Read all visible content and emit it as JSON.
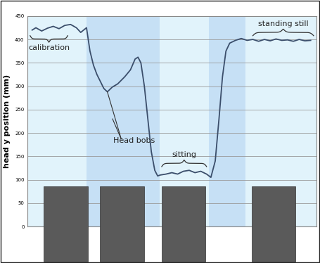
{
  "chart_data": {
    "type": "line",
    "y_label": "head y position (mm)",
    "x": [
      1.7,
      3,
      5,
      7,
      9,
      11,
      13,
      15,
      17,
      18.5,
      19.5,
      20.5,
      21.7,
      22.9,
      24.1,
      25.3,
      26.5,
      27.7,
      28.4,
      29.4,
      31.3,
      33.7,
      35.7,
      37.3,
      38.3,
      39.3,
      40.5,
      41.7,
      42.9,
      44.1,
      45.1,
      46,
      48,
      50,
      52,
      54,
      56,
      58,
      60,
      62,
      63.5,
      65,
      66.3,
      67.5,
      68.7,
      70,
      72,
      74,
      76,
      78,
      80,
      82,
      84,
      86,
      88,
      90,
      92,
      94,
      96,
      98
    ],
    "values": [
      420,
      425,
      418,
      424,
      428,
      423,
      430,
      432,
      425,
      415,
      420,
      425,
      375,
      345,
      325,
      310,
      295,
      288,
      292,
      298,
      305,
      320,
      335,
      358,
      362,
      350,
      300,
      230,
      160,
      120,
      108,
      110,
      112,
      115,
      112,
      118,
      120,
      115,
      118,
      112,
      105,
      140,
      230,
      320,
      375,
      392,
      398,
      402,
      398,
      400,
      396,
      400,
      397,
      401,
      398,
      399,
      396,
      400,
      397,
      398
    ],
    "color": "#3b4e6b",
    "xlim": [
      0,
      100
    ],
    "ylim": [
      0,
      450
    ],
    "yticks": [
      0,
      50,
      100,
      150,
      200,
      250,
      300,
      350,
      400,
      450
    ],
    "grid": true,
    "tick_labels": "y",
    "bands": [
      {
        "x": [
          0,
          20.5
        ],
        "color": "#e1f3fb"
      },
      {
        "x": [
          20.5,
          45.8
        ],
        "color": "#c6e0f5"
      },
      {
        "x": [
          45.8,
          62.7
        ],
        "color": "#e1f3fb"
      },
      {
        "x": [
          62.7,
          75.4
        ],
        "color": "#c6e0f5"
      },
      {
        "x": [
          75.4,
          100
        ],
        "color": "#e1f3fb"
      }
    ],
    "braces": [
      {
        "text": "calibration",
        "span": [
          1.0,
          14.0
        ],
        "y": 408,
        "direction": "down"
      },
      {
        "text": "sitting",
        "span": [
          46.5,
          62.0
        ],
        "y": 128,
        "direction": "up"
      },
      {
        "text": "standing still",
        "span": [
          78.0,
          99.0
        ],
        "y": 408,
        "direction": "up"
      }
    ],
    "annotations": [
      {
        "text": "Head bobs",
        "x": 37,
        "y": 183,
        "points": [
          [
            27.7,
            288
          ],
          [
            29.5,
            230
          ]
        ]
      }
    ]
  }
}
